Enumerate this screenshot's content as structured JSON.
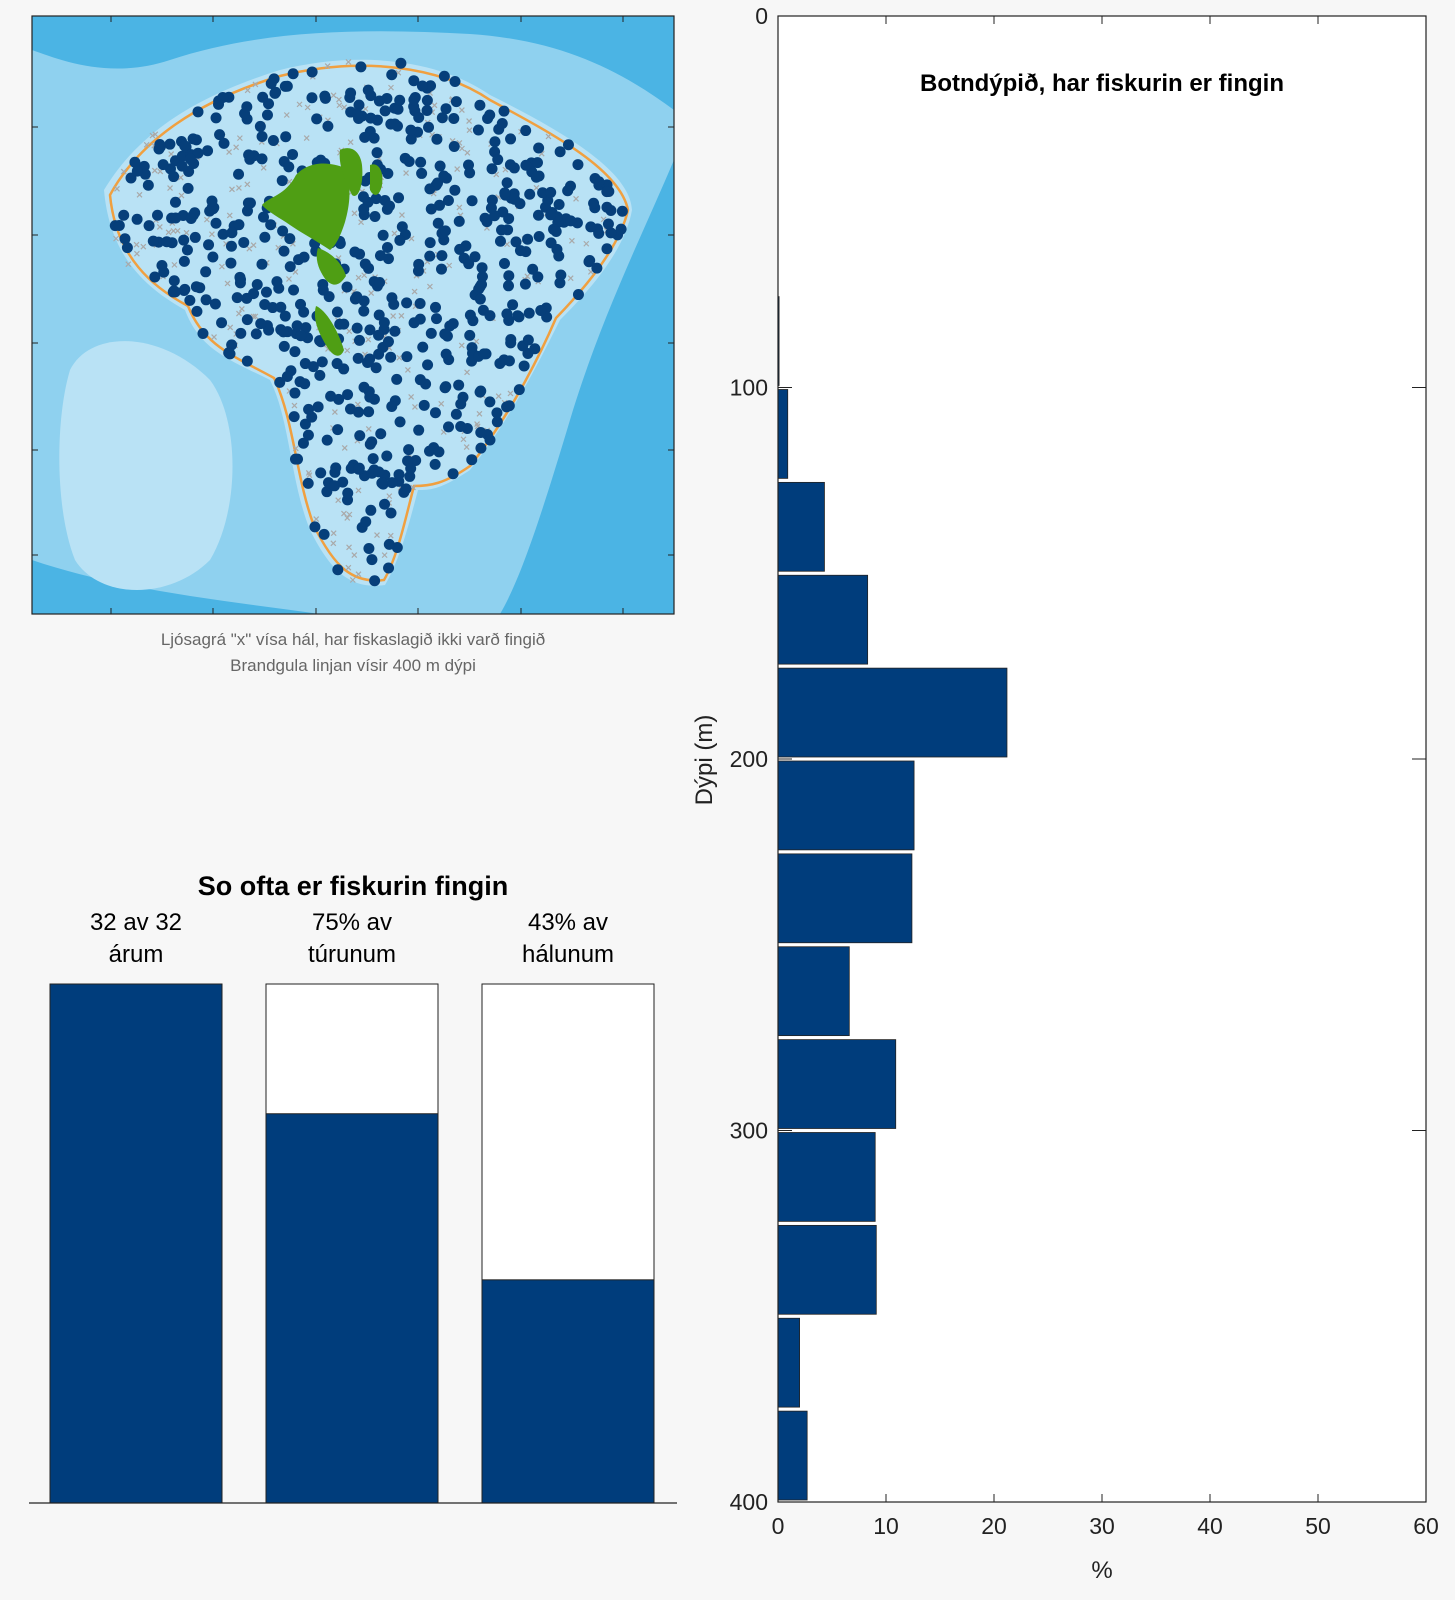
{
  "map": {
    "caption_line1": "Ljósagrá \"x\" vísa hál, har fiskaslagið ikki varð fingið",
    "caption_line2": "Brandgula linjan vísir 400 m dýpi",
    "colors": {
      "water_light": "#b9e2f5",
      "water_mid": "#8fd1ef",
      "water_deep": "#4bb4e4",
      "land": "#4f9e14",
      "contour_400m": "#f0a040",
      "catch_point": "#063f7a",
      "no_catch_x": "#a9a9a9"
    }
  },
  "chart_data": [
    {
      "type": "bar",
      "title": "So ofta er fiskurin fingin",
      "categories": [
        "32 av 32\nárum",
        "75% av\ntúrunum",
        "43% av\nhálunum"
      ],
      "values": [
        100,
        75,
        43
      ],
      "ylim": [
        0,
        100
      ],
      "color": "#003d7c"
    },
    {
      "type": "bar",
      "orientation": "horizontal",
      "title": "Botndýpið, har fiskurin er fingin",
      "xlabel": "%",
      "ylabel": "Dýpi (m)",
      "xlim": [
        0,
        60
      ],
      "ylim": [
        0,
        400
      ],
      "y_reversed": true,
      "xticks": [
        0,
        10,
        20,
        30,
        40,
        50,
        60
      ],
      "yticks": [
        0,
        100,
        200,
        300,
        400
      ],
      "bin_width": 25,
      "bins": [
        {
          "from": 75,
          "to": 100,
          "value": 0.1
        },
        {
          "from": 100,
          "to": 125,
          "value": 0.9
        },
        {
          "from": 125,
          "to": 150,
          "value": 4.3
        },
        {
          "from": 150,
          "to": 175,
          "value": 8.3
        },
        {
          "from": 175,
          "to": 200,
          "value": 21.2
        },
        {
          "from": 200,
          "to": 225,
          "value": 12.6
        },
        {
          "from": 225,
          "to": 250,
          "value": 12.4
        },
        {
          "from": 250,
          "to": 275,
          "value": 6.6
        },
        {
          "from": 275,
          "to": 300,
          "value": 10.9
        },
        {
          "from": 300,
          "to": 325,
          "value": 9.0
        },
        {
          "from": 325,
          "to": 350,
          "value": 9.1
        },
        {
          "from": 350,
          "to": 375,
          "value": 2.0
        },
        {
          "from": 375,
          "to": 400,
          "value": 2.7
        }
      ],
      "color": "#003d7c"
    }
  ]
}
